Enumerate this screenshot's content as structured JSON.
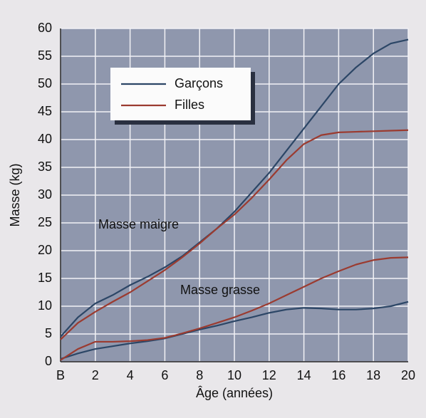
{
  "chart_data": {
    "type": "line",
    "x_label": "Âge (années)",
    "y_label": "Masse (kg)",
    "x": [
      0,
      1,
      2,
      3,
      4,
      5,
      6,
      7,
      8,
      9,
      10,
      11,
      12,
      13,
      14,
      15,
      16,
      17,
      18,
      19,
      20
    ],
    "series": [
      {
        "name": "Garçons",
        "color": "#2c4666",
        "values": [
          4.5,
          8,
          10.5,
          12,
          13.8,
          15.3,
          17,
          19,
          21.5,
          24,
          27,
          30.5,
          34,
          38,
          42,
          46,
          50,
          53,
          55.5,
          57.3,
          58
        ]
      },
      {
        "name": "Filles",
        "color": "#9b3b30",
        "values": [
          4,
          7,
          9,
          10.8,
          12.5,
          14.5,
          16.5,
          18.8,
          21.3,
          24,
          26.5,
          29.5,
          32.8,
          36.3,
          39.2,
          40.8,
          41.3,
          41.4,
          41.5,
          41.6,
          41.7
        ]
      },
      {
        "name": "Garçons",
        "color": "#2c4666",
        "values": [
          0.5,
          1.5,
          2.3,
          2.8,
          3.3,
          3.7,
          4.2,
          5,
          5.8,
          6.5,
          7.3,
          8,
          8.8,
          9.4,
          9.7,
          9.6,
          9.4,
          9.4,
          9.6,
          10,
          10.8
        ]
      },
      {
        "name": "Filles",
        "color": "#9b3b30",
        "values": [
          0.3,
          2.3,
          3.6,
          3.6,
          3.7,
          3.9,
          4.3,
          5.1,
          6,
          7,
          8,
          9.2,
          10.5,
          12,
          13.5,
          15,
          16.3,
          17.5,
          18.3,
          18.7,
          18.8
        ]
      }
    ],
    "annotations": [
      "Masse maigre",
      "Masse grasse"
    ],
    "xlim": [
      0,
      20
    ],
    "ylim": [
      0,
      60
    ],
    "xticks": [
      {
        "value": 0,
        "label": "B"
      },
      2,
      4,
      6,
      8,
      10,
      12,
      14,
      16,
      18,
      20
    ],
    "yticks": [
      0,
      5,
      10,
      15,
      20,
      25,
      30,
      35,
      40,
      45,
      50,
      55,
      60
    ],
    "grid": true,
    "plot_background": "#8f97ad"
  }
}
